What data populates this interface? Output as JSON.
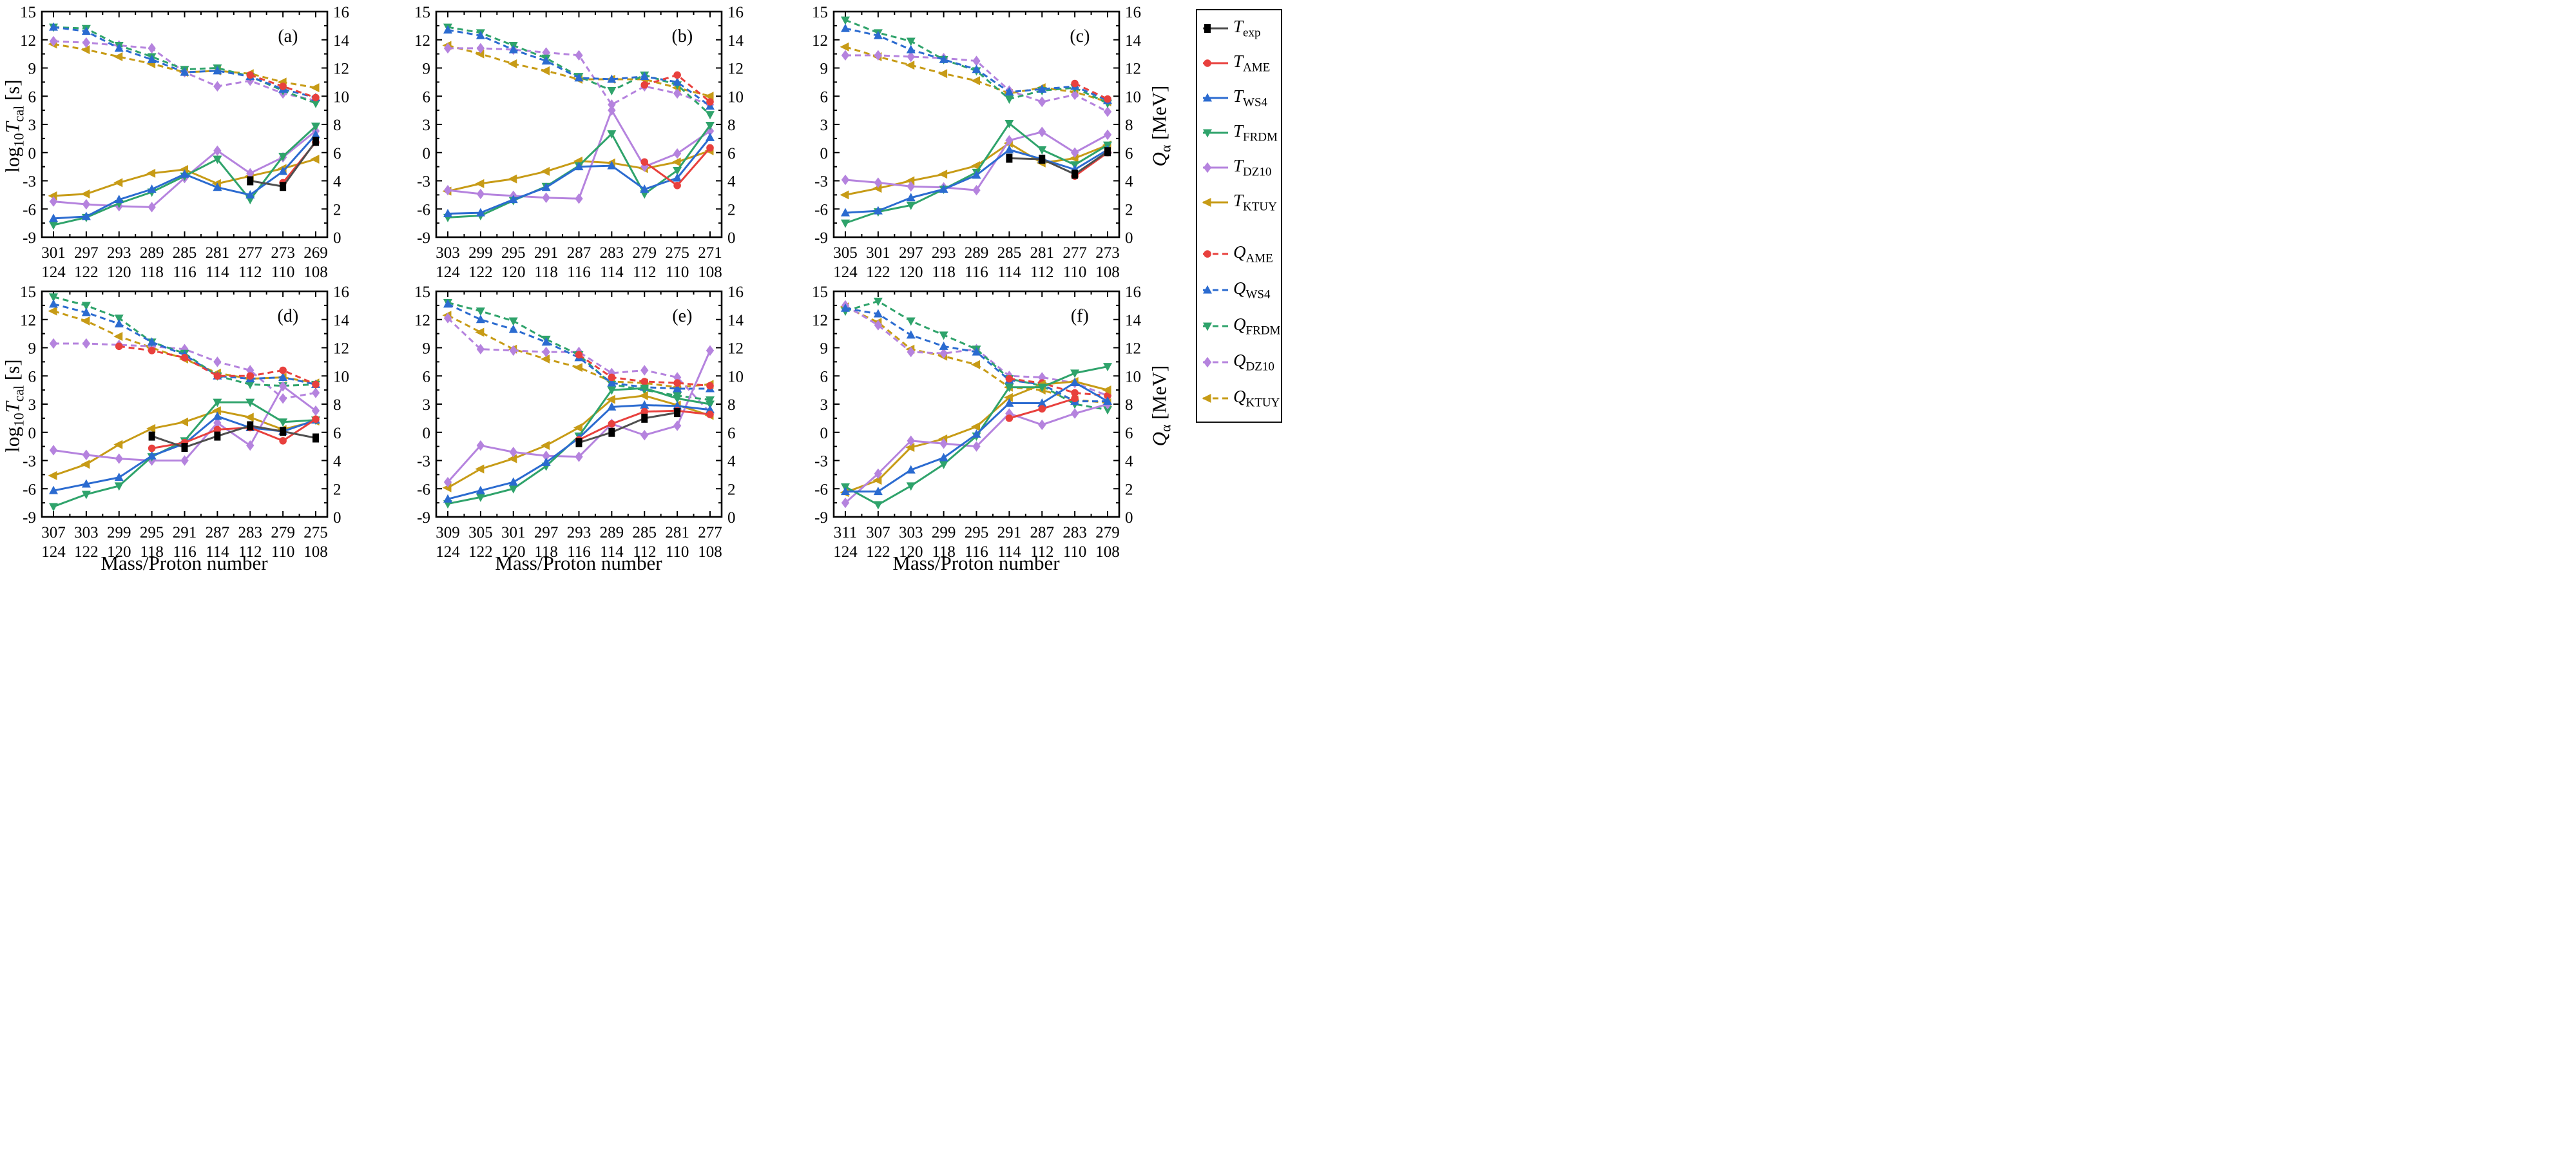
{
  "axes": {
    "x_title": "Mass/Proton number",
    "left_label": {
      "pre": "log",
      "pre_sub": "10",
      "sym": "T",
      "sym_sub": "cal",
      "unit": " [s]"
    },
    "right_label": {
      "sym": "Q",
      "sym_sub": "α",
      "unit": " [MeV]"
    }
  },
  "chart_data": {
    "type": "line",
    "x_title": "Mass/Proton number",
    "left_axis": {
      "label": "log10 Tcal [s]",
      "range": [
        -9,
        15
      ],
      "ticks": [
        15,
        12,
        9,
        6,
        3,
        0,
        -3,
        -6,
        -9
      ]
    },
    "right_axis": {
      "label": "Q_alpha [MeV]",
      "range": [
        0,
        16
      ],
      "ticks": [
        16,
        14,
        12,
        10,
        8,
        6,
        4,
        2,
        0
      ]
    },
    "grid": false,
    "models": {
      "exp": {
        "color": "#4f4f4f",
        "marker_fill": "#000000",
        "marker": "exp-square"
      },
      "AME": {
        "color": "#e8403d",
        "marker_fill": "#e8403d",
        "marker": "circle"
      },
      "WS4": {
        "color": "#2b6bd0",
        "marker_fill": "#2b6bd0",
        "marker": "triangle-up"
      },
      "FRDM": {
        "color": "#2fa36b",
        "marker_fill": "#2fa36b",
        "marker": "triangle-down"
      },
      "DZ10": {
        "color": "#b583de",
        "marker_fill": "#b583de",
        "marker": "diamond"
      },
      "KTUY": {
        "color": "#c79b16",
        "marker_fill": "#c79b16",
        "marker": "triangle-left"
      }
    },
    "panels": [
      {
        "label": "(a)",
        "mass": [
          301,
          297,
          293,
          289,
          285,
          281,
          277,
          273,
          269
        ],
        "proton": [
          124,
          122,
          120,
          118,
          116,
          114,
          112,
          110,
          108
        ],
        "T": {
          "exp": [
            null,
            null,
            null,
            null,
            null,
            null,
            -3.0,
            -3.6,
            1.2
          ],
          "AME": [
            null,
            null,
            null,
            null,
            null,
            null,
            null,
            -3.2,
            1.1
          ],
          "WS4": [
            -7.0,
            -6.8,
            -5.0,
            -3.9,
            -2.3,
            -3.7,
            -4.5,
            -2.0,
            1.9
          ],
          "FRDM": [
            -7.7,
            -6.9,
            -5.4,
            -4.2,
            -2.5,
            -0.7,
            -5.0,
            -0.4,
            2.8
          ],
          "DZ10": [
            -5.2,
            -5.5,
            -5.7,
            -5.8,
            -2.7,
            0.2,
            -2.2,
            -0.5,
            2.3
          ],
          "KTUY": [
            -4.6,
            -4.4,
            -3.2,
            -2.2,
            -1.8,
            -3.3,
            -2.5,
            -1.7,
            -0.7
          ]
        },
        "Q": {
          "AME": [
            null,
            null,
            null,
            null,
            null,
            null,
            11.5,
            10.7,
            9.9
          ],
          "WS4": [
            14.9,
            14.6,
            13.4,
            12.6,
            11.7,
            11.8,
            11.4,
            10.5,
            9.9
          ],
          "FRDM": [
            14.9,
            14.8,
            13.6,
            12.8,
            11.9,
            12.0,
            11.4,
            10.4,
            9.5
          ],
          "DZ10": [
            13.9,
            13.8,
            13.6,
            13.4,
            11.7,
            10.7,
            11.1,
            10.2,
            9.7
          ],
          "KTUY": [
            13.7,
            13.3,
            12.8,
            12.3,
            11.7,
            11.8,
            11.6,
            11.0,
            10.6
          ]
        }
      },
      {
        "label": "(b)",
        "mass": [
          303,
          299,
          295,
          291,
          287,
          283,
          279,
          275,
          271
        ],
        "proton": [
          124,
          122,
          120,
          118,
          116,
          114,
          112,
          110,
          108
        ],
        "T": {
          "AME": [
            null,
            null,
            null,
            null,
            null,
            null,
            -1.0,
            -3.5,
            0.5
          ],
          "WS4": [
            -6.5,
            -6.4,
            -5.0,
            -3.7,
            -1.5,
            -1.4,
            -3.9,
            -2.7,
            1.6
          ],
          "FRDM": [
            -6.9,
            -6.7,
            -5.1,
            -3.6,
            -1.4,
            2.0,
            -4.4,
            -1.9,
            2.9
          ],
          "DZ10": [
            -4.0,
            -4.4,
            -4.6,
            -4.8,
            -4.9,
            4.5,
            -1.5,
            -0.1,
            2.3
          ],
          "KTUY": [
            -4.1,
            -3.3,
            -2.8,
            -2.0,
            -0.9,
            -1.1,
            -1.7,
            -1.0,
            0.2
          ]
        },
        "Q": {
          "AME": [
            null,
            null,
            null,
            null,
            null,
            null,
            10.8,
            11.5,
            9.6
          ],
          "WS4": [
            14.7,
            14.3,
            13.3,
            12.5,
            11.3,
            11.2,
            11.4,
            11.0,
            9.3
          ],
          "FRDM": [
            14.9,
            14.5,
            13.6,
            12.7,
            11.4,
            10.4,
            11.5,
            10.8,
            8.7
          ],
          "DZ10": [
            13.4,
            13.4,
            13.3,
            13.1,
            12.9,
            9.4,
            10.7,
            10.2,
            9.4
          ],
          "KTUY": [
            13.6,
            13.0,
            12.3,
            11.8,
            11.2,
            11.2,
            11.2,
            10.6,
            10.0
          ]
        }
      },
      {
        "label": "(c)",
        "mass": [
          305,
          301,
          297,
          293,
          289,
          285,
          281,
          277,
          273
        ],
        "proton": [
          124,
          122,
          120,
          118,
          116,
          114,
          112,
          110,
          108
        ],
        "T": {
          "exp": [
            null,
            null,
            null,
            null,
            null,
            -0.6,
            -0.7,
            -2.3,
            0.1
          ],
          "AME": [
            null,
            null,
            null,
            null,
            null,
            null,
            null,
            -2.5,
            0.0
          ],
          "WS4": [
            -6.4,
            -6.2,
            -4.8,
            -3.9,
            -2.4,
            0.3,
            -0.7,
            -1.8,
            0.3
          ],
          "FRDM": [
            -7.5,
            -6.3,
            -5.6,
            -3.9,
            -2.1,
            3.1,
            0.3,
            -1.3,
            0.8
          ],
          "DZ10": [
            -2.9,
            -3.2,
            -3.6,
            -3.7,
            -4.0,
            1.3,
            2.2,
            0.0,
            1.9
          ],
          "KTUY": [
            -4.5,
            -3.8,
            -3.0,
            -2.3,
            -1.4,
            1.0,
            -1.1,
            -0.6,
            0.8
          ]
        },
        "Q": {
          "AME": [
            null,
            null,
            null,
            null,
            null,
            null,
            null,
            10.9,
            9.8
          ],
          "WS4": [
            14.8,
            14.3,
            13.3,
            12.6,
            11.9,
            10.3,
            10.5,
            10.7,
            9.7
          ],
          "FRDM": [
            15.4,
            14.5,
            13.9,
            12.6,
            11.8,
            9.8,
            10.4,
            10.6,
            9.5
          ],
          "DZ10": [
            12.9,
            12.9,
            12.8,
            12.7,
            12.5,
            10.4,
            9.6,
            10.1,
            8.9
          ],
          "KTUY": [
            13.5,
            12.8,
            12.2,
            11.6,
            11.1,
            10.2,
            10.6,
            10.3,
            9.6
          ]
        }
      },
      {
        "label": "(d)",
        "mass": [
          307,
          303,
          299,
          295,
          291,
          287,
          283,
          279,
          275
        ],
        "proton": [
          124,
          122,
          120,
          118,
          116,
          114,
          112,
          110,
          108
        ],
        "T": {
          "exp": [
            null,
            null,
            null,
            -0.4,
            -1.6,
            -0.4,
            0.7,
            0.1,
            -0.6
          ],
          "AME": [
            null,
            null,
            null,
            -1.7,
            -1.1,
            0.3,
            0.5,
            -0.9,
            1.4
          ],
          "WS4": [
            -6.2,
            -5.5,
            -4.8,
            -2.5,
            -1.2,
            1.7,
            0.5,
            0.1,
            1.3
          ],
          "FRDM": [
            -7.9,
            -6.6,
            -5.7,
            -2.6,
            -0.9,
            3.2,
            3.2,
            1.1,
            1.3
          ],
          "DZ10": [
            -1.9,
            -2.4,
            -2.8,
            -3.0,
            -3.0,
            1.0,
            -1.4,
            4.9,
            2.3
          ],
          "KTUY": [
            -4.6,
            -3.4,
            -1.3,
            0.4,
            1.1,
            2.3,
            1.6,
            0.3,
            1.2
          ]
        },
        "Q": {
          "AME": [
            null,
            null,
            12.1,
            11.8,
            11.3,
            10.0,
            10.0,
            10.4,
            9.4
          ],
          "WS4": [
            15.1,
            14.5,
            13.7,
            12.4,
            11.5,
            10.0,
            9.8,
            9.9,
            9.4
          ],
          "FRDM": [
            15.6,
            15.0,
            14.1,
            12.4,
            11.6,
            10.0,
            9.4,
            9.3,
            9.4
          ],
          "DZ10": [
            12.3,
            12.3,
            12.2,
            12.1,
            11.9,
            11.0,
            10.4,
            8.4,
            8.8
          ],
          "KTUY": [
            14.6,
            13.9,
            12.8,
            12.0,
            11.2,
            10.2,
            9.8,
            9.9,
            9.5
          ]
        }
      },
      {
        "label": "(e)",
        "mass": [
          309,
          305,
          301,
          297,
          293,
          289,
          285,
          281,
          277
        ],
        "proton": [
          124,
          122,
          120,
          118,
          116,
          114,
          112,
          110,
          108
        ],
        "T": {
          "exp": [
            null,
            null,
            null,
            null,
            -1.1,
            0.0,
            1.5,
            2.1,
            null
          ],
          "AME": [
            null,
            null,
            null,
            null,
            -0.8,
            0.9,
            2.2,
            2.3,
            1.9
          ],
          "WS4": [
            -7.1,
            -6.2,
            -5.3,
            -3.2,
            -0.6,
            2.7,
            2.9,
            2.8,
            2.4
          ],
          "FRDM": [
            -7.6,
            -6.9,
            -6.0,
            -3.6,
            -0.4,
            4.5,
            4.7,
            3.6,
            3.0
          ],
          "DZ10": [
            -5.3,
            -1.4,
            -2.1,
            -2.5,
            -2.6,
            0.9,
            -0.3,
            0.7,
            8.7
          ],
          "KTUY": [
            -5.9,
            -3.9,
            -2.8,
            -1.4,
            0.5,
            3.5,
            3.9,
            2.9,
            1.8
          ]
        },
        "Q": {
          "AME": [
            null,
            null,
            null,
            null,
            11.5,
            9.9,
            9.6,
            9.5,
            9.3
          ],
          "WS4": [
            15.1,
            14.0,
            13.3,
            12.4,
            11.3,
            9.5,
            9.2,
            9.1,
            9.1
          ],
          "FRDM": [
            15.2,
            14.6,
            13.9,
            12.6,
            11.5,
            9.4,
            9.0,
            8.6,
            8.3
          ],
          "DZ10": [
            14.1,
            11.9,
            11.8,
            11.7,
            11.7,
            10.2,
            10.4,
            9.9,
            7.4
          ],
          "KTUY": [
            14.3,
            13.1,
            11.9,
            11.2,
            10.6,
            9.6,
            9.5,
            9.2,
            9.4
          ]
        }
      },
      {
        "label": "(f)",
        "mass": [
          311,
          307,
          303,
          299,
          295,
          291,
          287,
          283,
          279
        ],
        "proton": [
          124,
          122,
          120,
          118,
          116,
          114,
          112,
          110,
          108
        ],
        "T": {
          "AME": [
            null,
            null,
            null,
            null,
            null,
            1.5,
            2.5,
            3.6,
            null
          ],
          "WS4": [
            -6.3,
            -6.3,
            -4.0,
            -2.7,
            -0.2,
            3.1,
            3.1,
            5.3,
            3.3
          ],
          "FRDM": [
            -5.8,
            -7.7,
            -5.7,
            -3.4,
            -0.4,
            4.8,
            4.8,
            6.3,
            7.0
          ],
          "DZ10": [
            -7.5,
            -4.4,
            -0.9,
            -1.2,
            -1.5,
            2.0,
            0.8,
            2.0,
            3.0
          ],
          "KTUY": [
            -6.4,
            -5.1,
            -1.6,
            -0.7,
            0.6,
            3.7,
            5.1,
            5.4,
            4.5
          ]
        },
        "Q": {
          "AME": [
            null,
            null,
            null,
            null,
            null,
            9.8,
            9.5,
            8.8,
            8.6
          ],
          "WS4": [
            14.8,
            14.4,
            12.9,
            12.1,
            11.7,
            9.7,
            9.4,
            8.2,
            8.2
          ],
          "FRDM": [
            14.6,
            15.3,
            13.9,
            12.9,
            11.9,
            9.8,
            9.3,
            8.0,
            7.6
          ],
          "DZ10": [
            15.0,
            13.6,
            11.7,
            11.6,
            11.9,
            10.0,
            9.9,
            9.5,
            8.6
          ],
          "KTUY": [
            14.9,
            13.8,
            11.9,
            11.4,
            10.8,
            9.2,
            9.0,
            8.3,
            8.1
          ]
        }
      }
    ]
  },
  "legend": {
    "t_items": [
      {
        "sym": "T",
        "sub": "exp",
        "model": "exp",
        "dashed": false
      },
      {
        "sym": "T",
        "sub": "AME",
        "model": "AME",
        "dashed": false
      },
      {
        "sym": "T",
        "sub": "WS4",
        "model": "WS4",
        "dashed": false
      },
      {
        "sym": "T",
        "sub": "FRDM",
        "model": "FRDM",
        "dashed": false
      },
      {
        "sym": "T",
        "sub": "DZ10",
        "model": "DZ10",
        "dashed": false
      },
      {
        "sym": "T",
        "sub": "KTUY",
        "model": "KTUY",
        "dashed": false
      }
    ],
    "q_items": [
      {
        "sym": "Q",
        "sub": "AME",
        "model": "AME",
        "dashed": true
      },
      {
        "sym": "Q",
        "sub": "WS4",
        "model": "WS4",
        "dashed": true
      },
      {
        "sym": "Q",
        "sub": "FRDM",
        "model": "FRDM",
        "dashed": true
      },
      {
        "sym": "Q",
        "sub": "DZ10",
        "model": "DZ10",
        "dashed": true
      },
      {
        "sym": "Q",
        "sub": "KTUY",
        "model": "KTUY",
        "dashed": true
      }
    ]
  }
}
